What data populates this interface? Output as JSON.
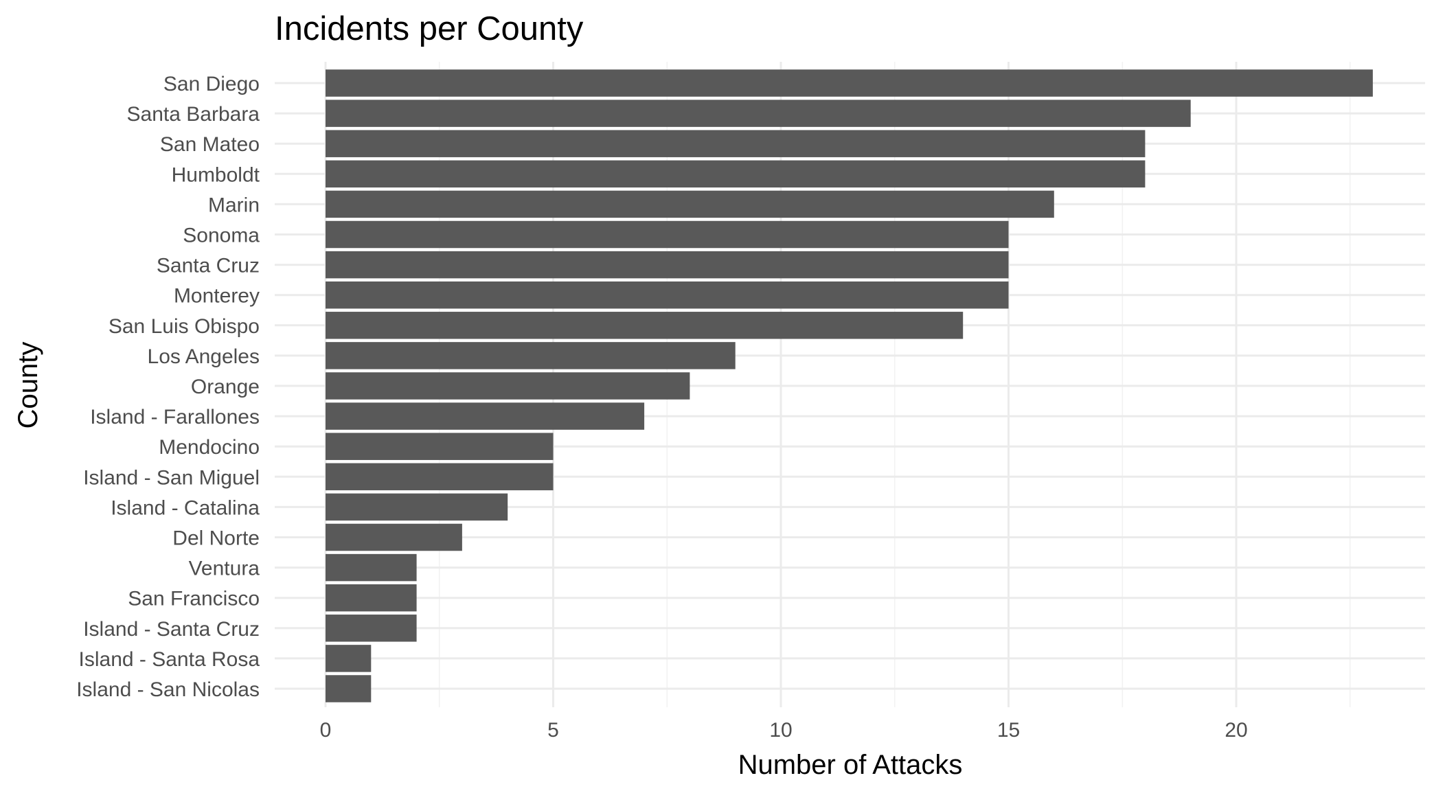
{
  "chart_data": {
    "type": "bar",
    "orientation": "horizontal",
    "title": "Incidents per County",
    "xlabel": "Number of Attacks",
    "ylabel": "County",
    "xlim": [
      0,
      24
    ],
    "xticks": [
      0,
      5,
      10,
      15,
      20
    ],
    "grid": true,
    "bar_color": "#595959",
    "categories": [
      "San Diego",
      "Santa Barbara",
      "San Mateo",
      "Humboldt",
      "Marin",
      "Sonoma",
      "Santa Cruz",
      "Monterey",
      "San Luis Obispo",
      "Los Angeles",
      "Orange",
      "Island - Farallones",
      "Mendocino",
      "Island - San Miguel",
      "Island - Catalina",
      "Del Norte",
      "Ventura",
      "San Francisco",
      "Island - Santa Cruz",
      "Island - Santa Rosa",
      "Island - San Nicolas"
    ],
    "values": [
      23,
      19,
      18,
      18,
      16,
      15,
      15,
      15,
      14,
      9,
      8,
      7,
      5,
      5,
      4,
      3,
      2,
      2,
      2,
      1,
      1
    ]
  }
}
